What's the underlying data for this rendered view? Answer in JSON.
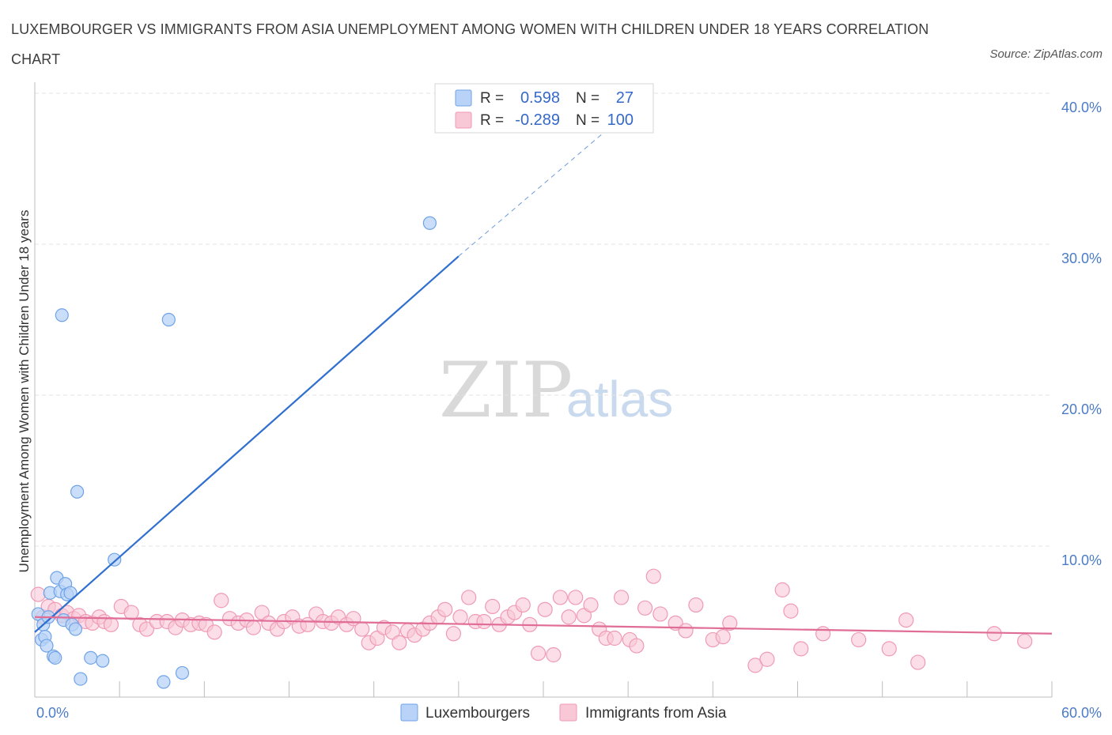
{
  "header": {
    "title": "LUXEMBOURGER VS IMMIGRANTS FROM ASIA UNEMPLOYMENT AMONG WOMEN WITH CHILDREN UNDER 18 YEARS CORRELATION CHART",
    "source": "Source: ZipAtlas.com"
  },
  "watermark": {
    "zip": "ZIP",
    "atlas": "atlas"
  },
  "legend": {
    "r_label": "R =",
    "n_label": "N =",
    "rows": [
      {
        "r": "0.598",
        "n": "27"
      },
      {
        "r": "-0.289",
        "n": "100"
      }
    ]
  },
  "colors": {
    "blue": "#6fa3e8",
    "blue_fill": "#b8d3f7",
    "blue_line": "#2f6fd0",
    "pink": "#f09ab5",
    "pink_fill": "#f8c8d7",
    "pink_line": "#e06d96",
    "grid": "#e3e3e3",
    "axis_label": "#4a7cc8"
  },
  "chart_data": {
    "type": "scatter",
    "title": "LUXEMBOURGER VS IMMIGRANTS FROM ASIA UNEMPLOYMENT AMONG WOMEN WITH CHILDREN UNDER 18 YEARS CORRELATION CHART",
    "xlabel": "",
    "ylabel": "Unemployment Among Women with Children Under 18 years",
    "xlim": [
      0,
      60
    ],
    "ylim": [
      0,
      40
    ],
    "x_tick_labels": [
      "0.0%",
      "60.0%"
    ],
    "y_ticks": [
      10,
      20,
      30,
      40
    ],
    "y_tick_labels": [
      "10.0%",
      "20.0%",
      "30.0%",
      "40.0%"
    ],
    "grid": true,
    "series": [
      {
        "name": "Luxembourgers",
        "r": 0.598,
        "n": 27,
        "trend": {
          "x0": 0.0,
          "y0": 4.3,
          "x1": 25.0,
          "y1": 29.2,
          "dashed_to_x": 36.5,
          "dashed_to_y": 40.2
        },
        "points": [
          [
            0.2,
            5.5
          ],
          [
            0.4,
            3.8
          ],
          [
            0.5,
            4.8
          ],
          [
            0.6,
            4.0
          ],
          [
            0.7,
            3.4
          ],
          [
            0.8,
            5.3
          ],
          [
            0.9,
            6.9
          ],
          [
            1.1,
            2.7
          ],
          [
            1.2,
            2.6
          ],
          [
            1.3,
            7.9
          ],
          [
            1.5,
            7.0
          ],
          [
            1.7,
            5.1
          ],
          [
            1.8,
            7.5
          ],
          [
            1.9,
            6.8
          ],
          [
            2.1,
            6.9
          ],
          [
            2.2,
            4.8
          ],
          [
            2.4,
            4.5
          ],
          [
            2.5,
            13.6
          ],
          [
            1.6,
            25.3
          ],
          [
            2.7,
            1.2
          ],
          [
            3.3,
            2.6
          ],
          [
            4.0,
            2.4
          ],
          [
            4.7,
            9.1
          ],
          [
            7.6,
            1.0
          ],
          [
            7.9,
            25.0
          ],
          [
            8.7,
            1.6
          ],
          [
            23.3,
            31.4
          ]
        ]
      },
      {
        "name": "Immigrants from Asia",
        "r": -0.289,
        "n": 100,
        "trend": {
          "x0": 0.0,
          "y0": 5.3,
          "x1": 60.0,
          "y1": 4.2
        },
        "points": [
          [
            0.2,
            6.8
          ],
          [
            0.5,
            5.3
          ],
          [
            0.8,
            6.0
          ],
          [
            1.2,
            5.8
          ],
          [
            1.6,
            5.4
          ],
          [
            1.9,
            5.6
          ],
          [
            2.3,
            5.2
          ],
          [
            2.6,
            5.4
          ],
          [
            3.0,
            5.0
          ],
          [
            3.4,
            4.9
          ],
          [
            3.8,
            5.3
          ],
          [
            4.1,
            5.0
          ],
          [
            4.5,
            4.8
          ],
          [
            5.1,
            6.0
          ],
          [
            5.7,
            5.6
          ],
          [
            6.2,
            4.8
          ],
          [
            6.6,
            4.5
          ],
          [
            7.2,
            5.0
          ],
          [
            7.8,
            5.0
          ],
          [
            8.3,
            4.6
          ],
          [
            8.7,
            5.1
          ],
          [
            9.2,
            4.8
          ],
          [
            9.7,
            4.9
          ],
          [
            10.1,
            4.8
          ],
          [
            10.6,
            4.3
          ],
          [
            11.0,
            6.4
          ],
          [
            11.5,
            5.2
          ],
          [
            12.0,
            4.9
          ],
          [
            12.5,
            5.1
          ],
          [
            12.9,
            4.6
          ],
          [
            13.4,
            5.6
          ],
          [
            13.8,
            4.9
          ],
          [
            14.3,
            4.5
          ],
          [
            14.7,
            5.0
          ],
          [
            15.2,
            5.3
          ],
          [
            15.6,
            4.7
          ],
          [
            16.1,
            4.8
          ],
          [
            16.6,
            5.5
          ],
          [
            17.0,
            5.0
          ],
          [
            17.5,
            4.9
          ],
          [
            17.9,
            5.3
          ],
          [
            18.4,
            4.8
          ],
          [
            18.8,
            5.2
          ],
          [
            19.3,
            4.5
          ],
          [
            19.7,
            3.6
          ],
          [
            20.2,
            3.9
          ],
          [
            20.6,
            4.6
          ],
          [
            21.1,
            4.3
          ],
          [
            21.5,
            3.6
          ],
          [
            22.0,
            4.4
          ],
          [
            22.4,
            4.1
          ],
          [
            22.9,
            4.5
          ],
          [
            23.3,
            4.9
          ],
          [
            23.8,
            5.3
          ],
          [
            24.2,
            5.8
          ],
          [
            24.7,
            4.2
          ],
          [
            25.1,
            5.3
          ],
          [
            25.6,
            6.6
          ],
          [
            26.0,
            5.0
          ],
          [
            26.5,
            5.0
          ],
          [
            27.0,
            6.0
          ],
          [
            27.4,
            4.8
          ],
          [
            27.9,
            5.3
          ],
          [
            28.3,
            5.6
          ],
          [
            28.8,
            6.1
          ],
          [
            29.2,
            4.8
          ],
          [
            29.7,
            2.9
          ],
          [
            30.1,
            5.8
          ],
          [
            30.6,
            2.8
          ],
          [
            31.0,
            6.6
          ],
          [
            31.5,
            5.3
          ],
          [
            31.9,
            6.6
          ],
          [
            32.4,
            5.4
          ],
          [
            32.8,
            6.1
          ],
          [
            33.3,
            4.5
          ],
          [
            33.7,
            3.9
          ],
          [
            34.2,
            3.9
          ],
          [
            34.6,
            6.6
          ],
          [
            35.1,
            3.8
          ],
          [
            35.5,
            3.4
          ],
          [
            36.0,
            5.9
          ],
          [
            36.5,
            8.0
          ],
          [
            36.9,
            5.5
          ],
          [
            37.8,
            4.9
          ],
          [
            38.4,
            4.4
          ],
          [
            39.0,
            6.1
          ],
          [
            40.0,
            3.8
          ],
          [
            40.6,
            4.0
          ],
          [
            41.0,
            4.9
          ],
          [
            42.5,
            2.1
          ],
          [
            43.2,
            2.5
          ],
          [
            44.1,
            7.1
          ],
          [
            44.6,
            5.7
          ],
          [
            45.2,
            3.2
          ],
          [
            46.5,
            4.2
          ],
          [
            48.6,
            3.8
          ],
          [
            50.4,
            3.2
          ],
          [
            51.4,
            5.1
          ],
          [
            52.1,
            2.3
          ],
          [
            56.6,
            4.2
          ],
          [
            58.4,
            3.7
          ]
        ]
      }
    ]
  },
  "bottom_legend": [
    "Luxembourgers",
    "Immigrants from Asia"
  ]
}
